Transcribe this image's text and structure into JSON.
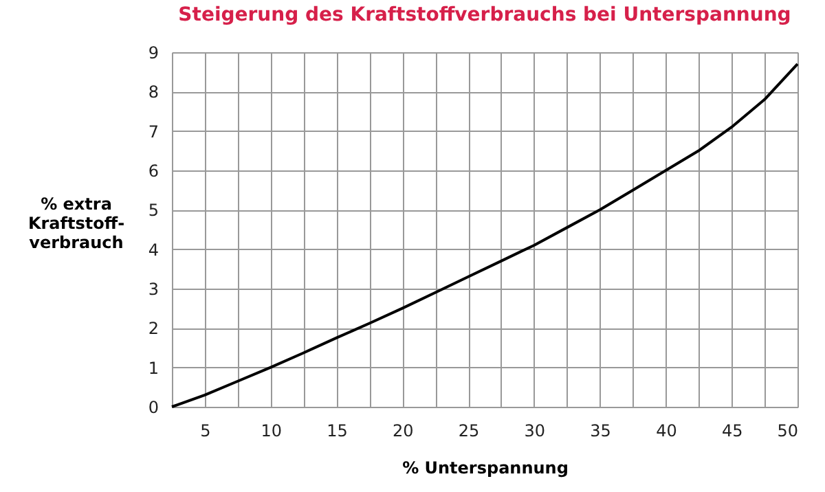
{
  "chart_data": {
    "type": "line",
    "title": "Steigerung des Kraftstoffverbrauchs bei Unterspannung",
    "xlabel": "% Unterspannung",
    "ylabel": "% extra\nKraftstoff-\nverbrauch",
    "x": [
      2.5,
      5,
      7.5,
      10,
      12.5,
      15,
      17.5,
      20,
      22.5,
      25,
      27.5,
      30,
      32.5,
      35,
      37.5,
      40,
      42.5,
      45,
      47.5,
      50
    ],
    "series": [
      {
        "color": "#000000",
        "values": [
          0,
          0.3,
          0.65,
          1.0,
          1.37,
          1.75,
          2.12,
          2.5,
          2.9,
          3.3,
          3.7,
          4.1,
          4.55,
          5.0,
          5.5,
          6.0,
          6.5,
          7.1,
          7.8,
          8.7
        ]
      }
    ],
    "xlim": [
      2.5,
      50
    ],
    "ylim": [
      0,
      9
    ],
    "xticks": [
      {
        "value": 2.5,
        "label": null
      },
      5,
      {
        "value": 7.5,
        "label": null
      },
      10,
      {
        "value": 12.5,
        "label": null
      },
      15,
      {
        "value": 17.5,
        "label": null
      },
      20,
      {
        "value": 22.5,
        "label": null
      },
      25,
      {
        "value": 27.5,
        "label": null
      },
      30,
      {
        "value": 32.5,
        "label": null
      },
      35,
      {
        "value": 37.5,
        "label": null
      },
      40,
      {
        "value": 42.5,
        "label": null
      },
      45,
      {
        "value": 47.5,
        "label": null
      },
      50
    ],
    "yticks": [
      0,
      1,
      2,
      3,
      4,
      5,
      6,
      7,
      8,
      9
    ],
    "grid": true,
    "marker": "none",
    "line_style": "solid"
  }
}
